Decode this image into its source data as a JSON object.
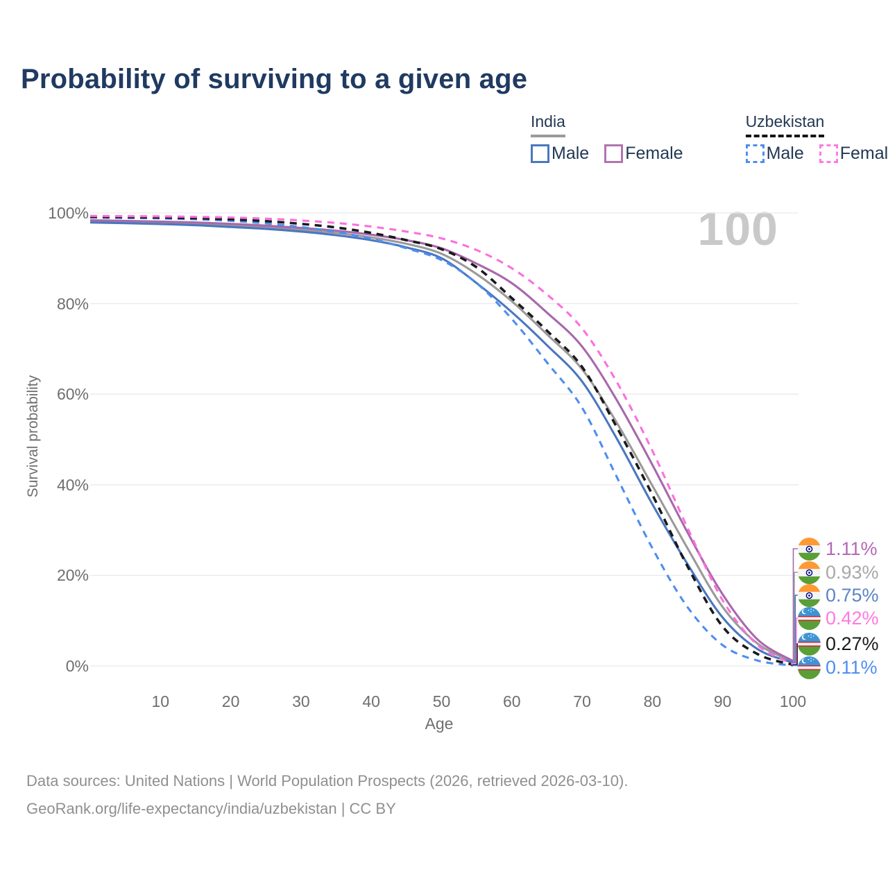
{
  "title": "Probability of surviving to a given age",
  "age_indicator": "100",
  "legend": {
    "groups": [
      {
        "name": "India",
        "underline_color": "#9a9a9a",
        "underline_dashed": false,
        "items": [
          {
            "label": "Male",
            "color": "#4a77c0",
            "dashed": false
          },
          {
            "label": "Female",
            "color": "#b273ae",
            "dashed": false
          }
        ]
      },
      {
        "name": "Uzbekistan",
        "underline_color": "#151515",
        "underline_dashed": true,
        "items": [
          {
            "label": "Male",
            "color": "#4d8ef0",
            "dashed": true
          },
          {
            "label": "Female",
            "color": "#ff79e1",
            "dashed": true
          }
        ]
      }
    ]
  },
  "chart_data": {
    "type": "line",
    "title": "Probability of surviving to a given age",
    "xlabel": "Age",
    "ylabel": "Survival probability",
    "xlim": [
      0,
      100
    ],
    "ylim": [
      0,
      100
    ],
    "grid": "horizontal",
    "x_ticks": [
      10,
      20,
      30,
      40,
      50,
      60,
      70,
      80,
      90,
      100
    ],
    "y_ticks": [
      0,
      20,
      40,
      60,
      80,
      100
    ],
    "y_tick_labels": [
      "0%",
      "20%",
      "40%",
      "60%",
      "80%",
      "100%"
    ],
    "legend_position": "top-right",
    "x": [
      0,
      5,
      10,
      15,
      20,
      25,
      30,
      35,
      40,
      45,
      50,
      55,
      60,
      65,
      70,
      75,
      80,
      85,
      90,
      95,
      100
    ],
    "series": [
      {
        "name": "India (both sexes)",
        "country": "India",
        "flag": "india",
        "color": "#9a9a9a",
        "dashed": false,
        "end_label": "0.93%",
        "label_color": "#a8a8a8",
        "values": [
          98.15,
          98.0,
          97.8,
          97.55,
          97.25,
          96.85,
          96.3,
          95.6,
          94.6,
          93.2,
          91.0,
          86.5,
          80.5,
          73.2,
          65.5,
          53.5,
          39.8,
          26.0,
          13.0,
          4.9,
          0.93
        ]
      },
      {
        "name": "India Male",
        "country": "India",
        "flag": "india",
        "color": "#4a77c0",
        "dashed": false,
        "end_label": "0.75%",
        "label_color": "#5b84c8",
        "values": [
          97.9,
          97.75,
          97.55,
          97.3,
          96.9,
          96.5,
          95.9,
          95.1,
          94.0,
          92.4,
          90.0,
          84.5,
          78.1,
          70.8,
          62.8,
          50.0,
          35.7,
          22.5,
          10.7,
          3.7,
          0.75
        ]
      },
      {
        "name": "India Female",
        "country": "India",
        "flag": "india",
        "color": "#a868ac",
        "dashed": false,
        "end_label": "1.11%",
        "label_color": "#b468b4",
        "values": [
          98.4,
          98.25,
          98.1,
          97.9,
          97.6,
          97.2,
          96.7,
          96.1,
          95.2,
          94.0,
          92.2,
          88.8,
          84.5,
          78.0,
          70.5,
          58.5,
          44.4,
          29.5,
          15.8,
          5.8,
          1.11
        ]
      },
      {
        "name": "Uzbekistan Male",
        "country": "Uzbekistan",
        "flag": "uzbekistan",
        "color": "#4d8ef0",
        "dashed": true,
        "end_label": "0.11%",
        "label_color": "#4d8ef0",
        "values": [
          99.0,
          98.9,
          98.8,
          98.6,
          98.25,
          97.7,
          96.9,
          95.8,
          94.3,
          92.2,
          89.6,
          84.5,
          76.6,
          67.0,
          57.0,
          41.5,
          26.0,
          13.0,
          4.6,
          1.2,
          0.11
        ]
      },
      {
        "name": "Uzbekistan (both sexes)",
        "country": "Uzbekistan",
        "flag": "uzbekistan",
        "color": "#1a1a1a",
        "dashed": true,
        "end_label": "0.27%",
        "label_color": "#1a1a1a",
        "values": [
          99.15,
          99.1,
          99.0,
          98.85,
          98.6,
          98.2,
          97.6,
          96.8,
          95.6,
          94.0,
          92.0,
          88.0,
          81.2,
          74.0,
          66.0,
          52.5,
          37.8,
          22.0,
          8.7,
          2.6,
          0.27
        ]
      },
      {
        "name": "Uzbekistan Female",
        "country": "Uzbekistan",
        "flag": "uzbekistan",
        "color": "#fb70dd",
        "dashed": true,
        "end_label": "0.42%",
        "label_color": "#ff79e1",
        "values": [
          99.35,
          99.3,
          99.25,
          99.15,
          99.0,
          98.75,
          98.35,
          97.8,
          97.0,
          95.9,
          94.4,
          91.8,
          87.8,
          82.0,
          74.5,
          62.5,
          47.5,
          30.5,
          14.5,
          4.6,
          0.42
        ]
      }
    ]
  },
  "footer": {
    "line1": "Data sources: United Nations | World Population Prospects (2026, retrieved 2026-03-10).",
    "line2": "GeoRank.org/life-expectancy/india/uzbekistan | CC BY"
  }
}
